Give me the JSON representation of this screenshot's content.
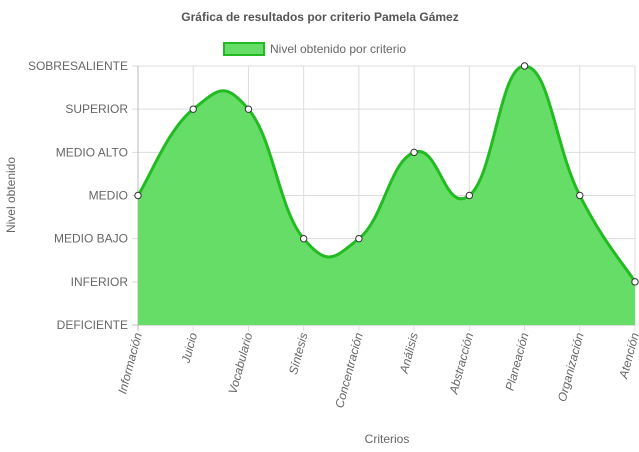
{
  "chart_data": {
    "type": "area",
    "title": "Gráfica de resultados por criterio Pamela Gámez",
    "xlabel": "Criterios",
    "ylabel": "Nivel obtenido",
    "legend": {
      "position": "top",
      "entries": [
        "Nivel obtenido por criterio"
      ]
    },
    "grid": true,
    "y_levels": [
      "DEFICIENTE",
      "INFERIOR",
      "MEDIO BAJO",
      "MEDIO",
      "MEDIO ALTO",
      "SUPERIOR",
      "SOBRESALIENTE"
    ],
    "ylim": [
      0,
      6
    ],
    "categories": [
      "Información",
      "Juicio",
      "Vocabulario",
      "Síntesis",
      "Concentración",
      "Análisis",
      "Abstracción",
      "Planeación",
      "Organización",
      "Atención"
    ],
    "series": [
      {
        "name": "Nivel obtenido por criterio",
        "values": [
          3,
          5,
          5,
          2,
          2,
          4,
          3,
          6,
          3,
          1
        ],
        "fill_color": "#66dd66",
        "line_color": "#22bb22"
      }
    ]
  }
}
